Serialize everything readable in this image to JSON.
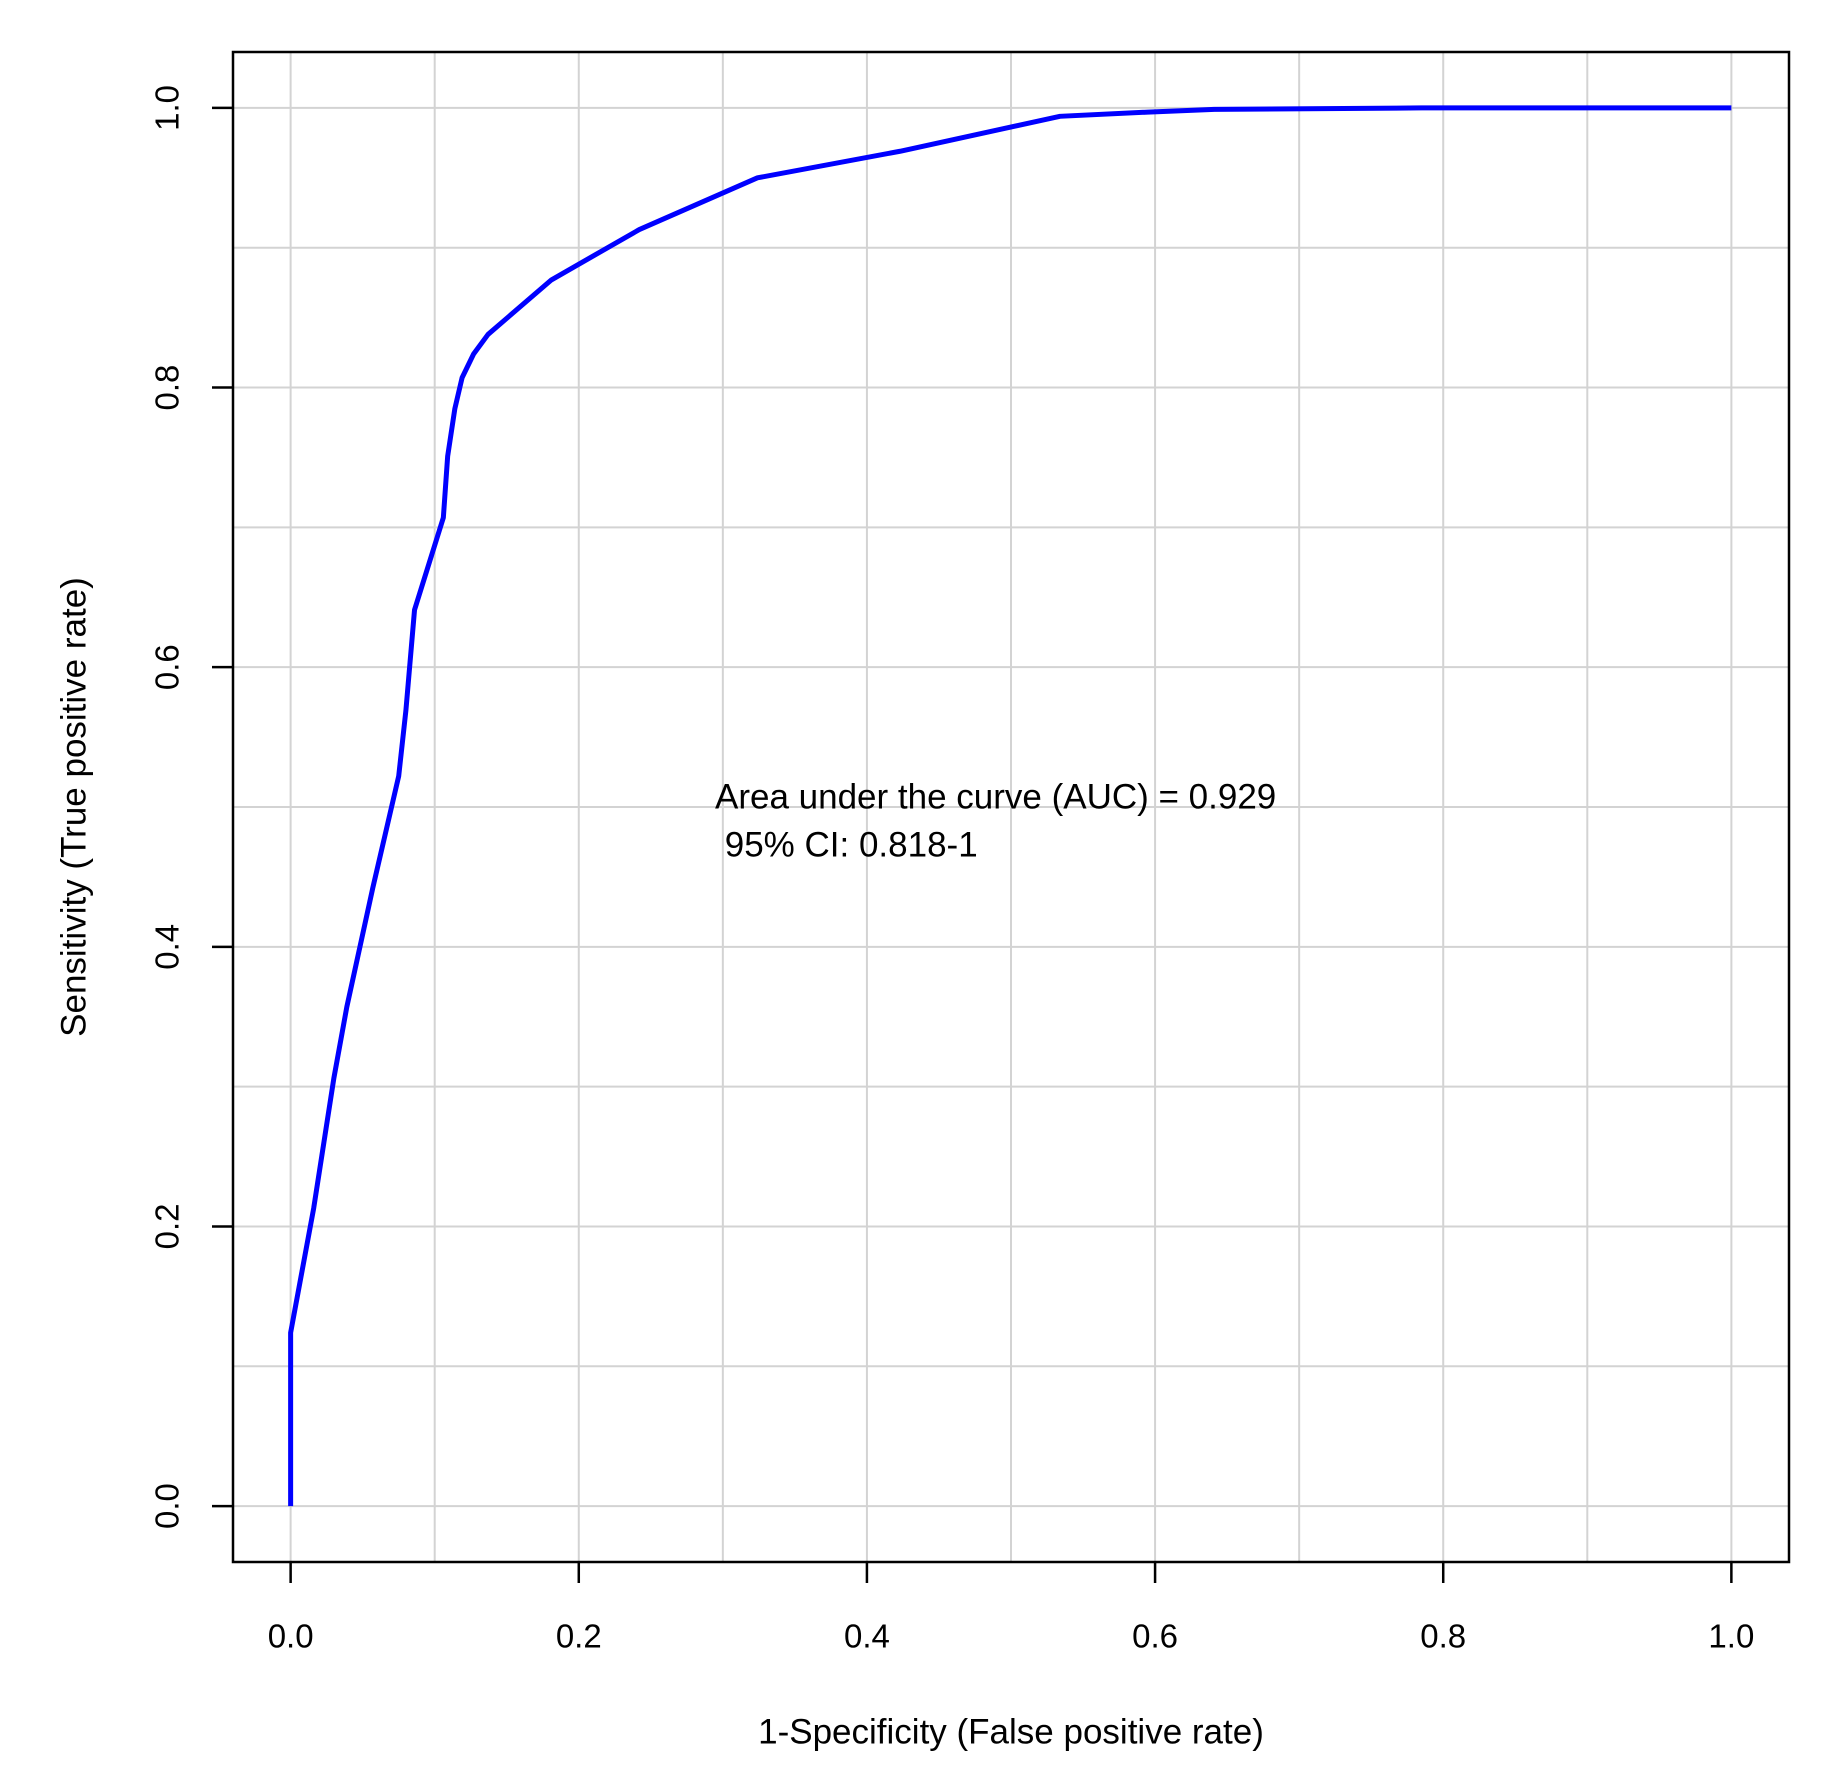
{
  "chart_data": {
    "type": "line",
    "xlabel": "1-Specificity (False positive rate)",
    "ylabel": "Sensitivity (True positive rate)",
    "annotations": [
      "Area under the curve (AUC) = 0.929",
      " 95% CI: 0.818-1"
    ],
    "xlim": [
      -0.04,
      1.04
    ],
    "ylim": [
      -0.04,
      1.04
    ],
    "xticks": [
      {
        "value": 0,
        "label": "0.0"
      },
      0.2,
      0.4,
      0.6,
      0.8,
      {
        "value": 1,
        "label": "1.0"
      }
    ],
    "yticks": [
      {
        "value": 0,
        "label": "0.0"
      },
      0.2,
      0.4,
      0.6,
      0.8,
      {
        "value": 1,
        "label": "1.0"
      }
    ],
    "xgrid": [
      0,
      0.1,
      0.2,
      0.3,
      0.4,
      0.5,
      0.6,
      0.7,
      0.8,
      0.9,
      1
    ],
    "ygrid": [
      0,
      0.1,
      0.2,
      0.3,
      0.4,
      0.5,
      0.6,
      0.7,
      0.8,
      0.9,
      1
    ],
    "grid": true,
    "series": [
      {
        "color": "#0000ff",
        "x": [
          0,
          0,
          0.016,
          0.03,
          0.039,
          0.057,
          0.075,
          0.08,
          0.086,
          0.106,
          0.109,
          0.114,
          0.119,
          0.127,
          0.137,
          0.181,
          0.242,
          0.324,
          0.423,
          0.534,
          0.595,
          0.641,
          0.785,
          1
        ],
        "values": [
          0,
          0.124,
          0.213,
          0.306,
          0.357,
          0.442,
          0.522,
          0.569,
          0.641,
          0.707,
          0.751,
          0.785,
          0.807,
          0.824,
          0.838,
          0.877,
          0.913,
          0.95,
          0.969,
          0.994,
          0.997,
          0.999,
          1,
          1
        ]
      }
    ]
  }
}
